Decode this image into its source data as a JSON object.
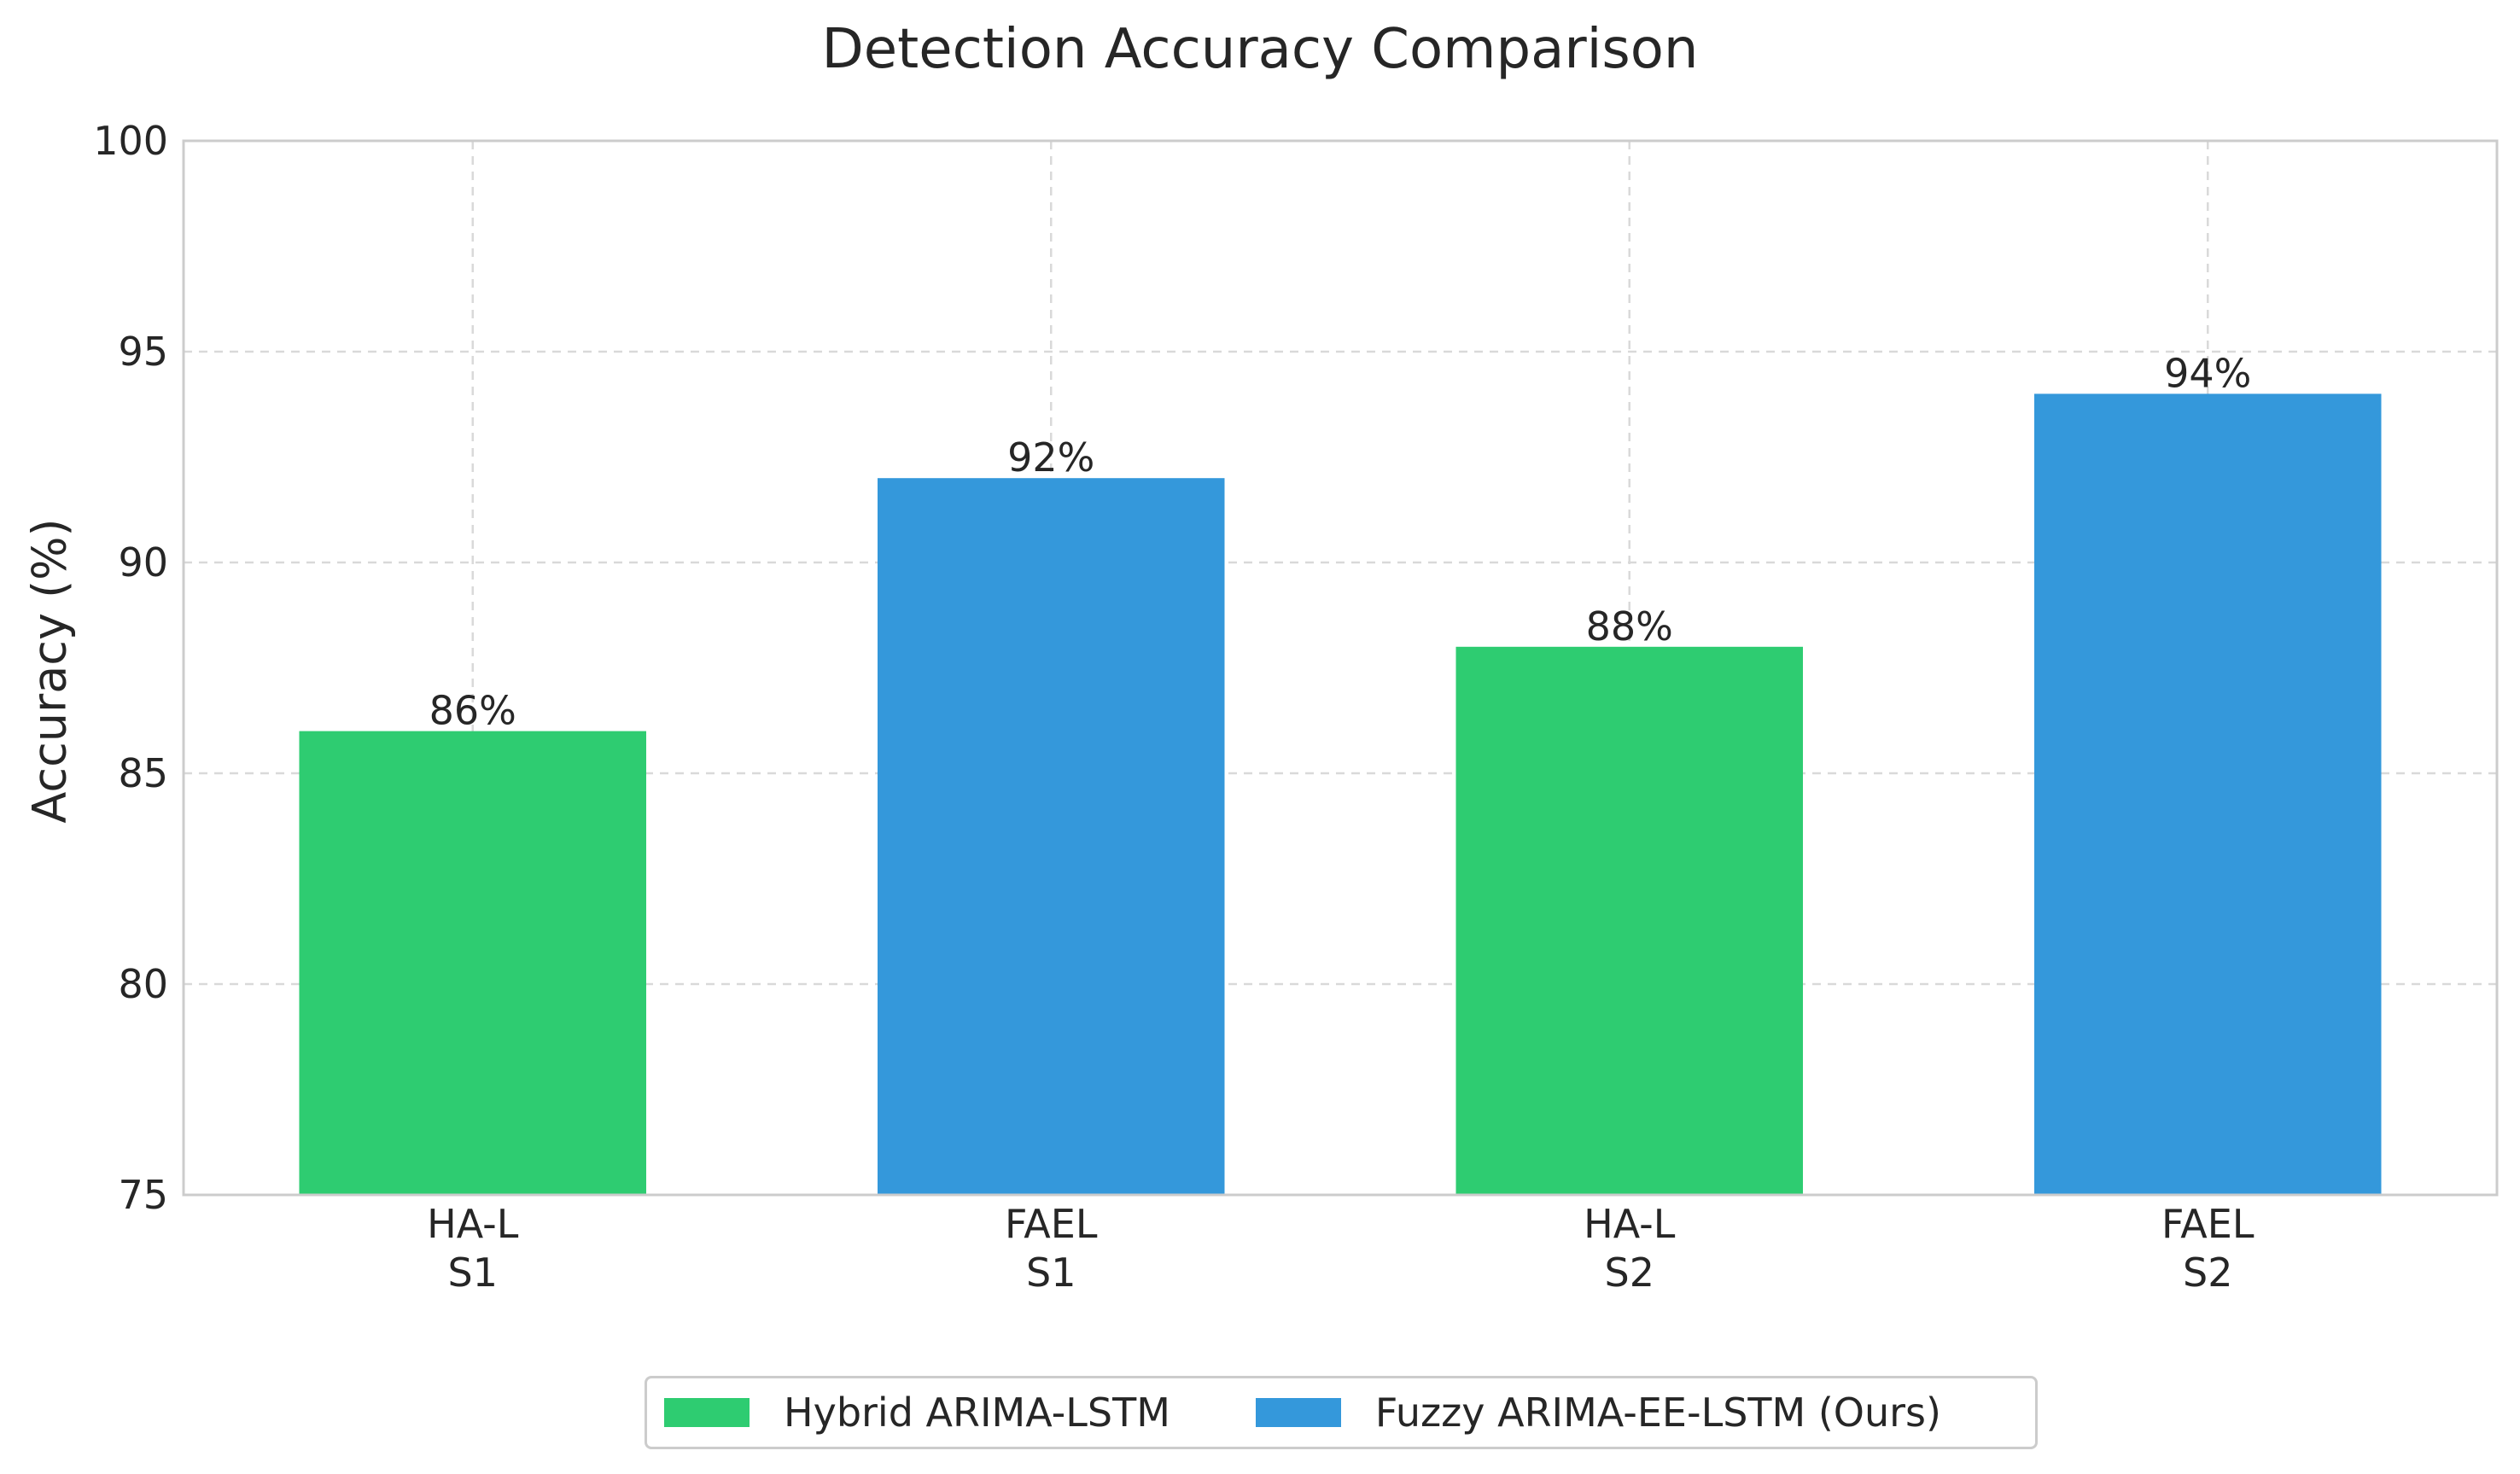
{
  "chart_data": {
    "type": "bar",
    "title": "Detection Accuracy Comparison",
    "xlabel": "",
    "ylabel": "Accuracy (%)",
    "ylim": [
      75,
      100
    ],
    "yticks": [
      "75",
      "80",
      "85",
      "90",
      "95",
      "100"
    ],
    "grid": true,
    "legend_position": "bottom-center",
    "categories": [
      "HA-L\nS1",
      "FAEL\nS1",
      "HA-L\nS2",
      "FAEL\nS2"
    ],
    "values": [
      86,
      92,
      88,
      94
    ],
    "value_labels": [
      "86%",
      "92%",
      "88%",
      "94%"
    ],
    "bar_series": [
      0,
      1,
      0,
      1
    ],
    "series": [
      {
        "name": "Hybrid ARIMA-LSTM",
        "color": "#2ecc71"
      },
      {
        "name": "Fuzzy ARIMA-EE-LSTM (Ours)",
        "color": "#3498db"
      }
    ]
  }
}
